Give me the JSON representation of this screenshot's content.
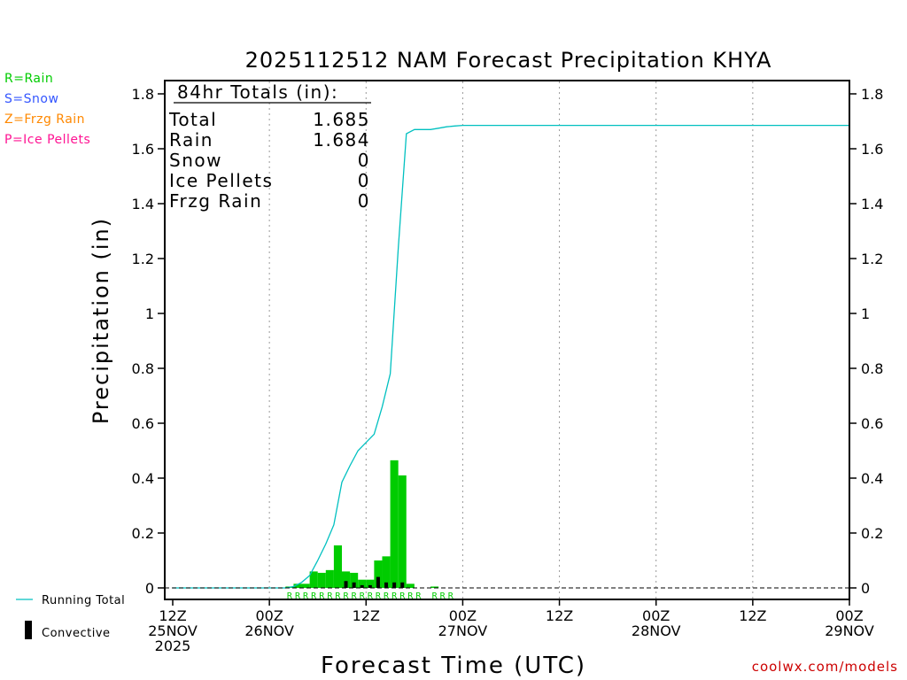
{
  "chart_data": {
    "type": "bar",
    "title": "2025112512 NAM Forecast Precipitation KHYA",
    "xlabel": "Forecast Time (UTC)",
    "ylabel": "Precipitation (in)",
    "ylim": [
      0,
      1.85
    ],
    "xlim_hours": [
      0,
      84
    ],
    "y_ticks": [
      0,
      0.2,
      0.4,
      0.6,
      0.8,
      1,
      1.2,
      1.4,
      1.6,
      1.8
    ],
    "y_tick_labels": [
      "0",
      "0.2",
      "0.4",
      "0.6",
      "0.8",
      "1",
      "1.2",
      "1.4",
      "1.6",
      "1.8"
    ],
    "x_ticks": [
      {
        "hour": 0,
        "line1": "12Z",
        "line2": "25NOV",
        "line3": "2025"
      },
      {
        "hour": 12,
        "line1": "00Z",
        "line2": "26NOV",
        "line3": ""
      },
      {
        "hour": 24,
        "line1": "12Z",
        "line2": "",
        "line3": ""
      },
      {
        "hour": 36,
        "line1": "00Z",
        "line2": "27NOV",
        "line3": ""
      },
      {
        "hour": 48,
        "line1": "12Z",
        "line2": "",
        "line3": ""
      },
      {
        "hour": 60,
        "line1": "00Z",
        "line2": "28NOV",
        "line3": ""
      },
      {
        "hour": 72,
        "line1": "12Z",
        "line2": "",
        "line3": ""
      },
      {
        "hour": 84,
        "line1": "00Z",
        "line2": "29NOV",
        "line3": ""
      }
    ],
    "grid": "vertical dotted at 00Z and 12Z",
    "bar_hours": [
      15,
      16,
      17,
      18,
      19,
      20,
      21,
      22,
      23,
      24,
      25,
      26,
      27,
      28,
      29,
      30,
      31,
      32,
      33,
      34,
      35
    ],
    "series": [
      {
        "name": "Rain",
        "color": "#00cc00",
        "values": [
          0.005,
          0.015,
          0.015,
          0.06,
          0.055,
          0.065,
          0.155,
          0.06,
          0.055,
          0.03,
          0.03,
          0.1,
          0.115,
          0.465,
          0.41,
          0.015,
          0.0,
          0.0,
          0.005,
          0.0,
          0.0
        ]
      },
      {
        "name": "Convective",
        "color": "#000000",
        "values": [
          0.0,
          0.0,
          0.0,
          0.0,
          0.0,
          0.0,
          0.0,
          0.025,
          0.02,
          0.01,
          0.01,
          0.04,
          0.02,
          0.02,
          0.02,
          0.0,
          0.0,
          0.0,
          0.0,
          0.0,
          0.0
        ]
      },
      {
        "name": "Running Total",
        "color": "#00c0c0",
        "x_hours": [
          0,
          14,
          15,
          16,
          17,
          18,
          19,
          20,
          21,
          22,
          23,
          24,
          25,
          26,
          27,
          28,
          29,
          30,
          31,
          32,
          33,
          34,
          35,
          36,
          84
        ],
        "values": [
          0,
          0,
          0.005,
          0.02,
          0.045,
          0.1,
          0.16,
          0.23,
          0.385,
          0.445,
          0.5,
          0.53,
          0.56,
          0.66,
          0.78,
          1.24,
          1.655,
          1.67,
          1.67,
          1.67,
          1.675,
          1.68,
          1.683,
          1.685,
          1.685
        ]
      }
    ],
    "ptype_marks": {
      "label": "R",
      "color": "#00cc00",
      "hours": [
        15,
        16,
        17,
        18,
        19,
        20,
        21,
        22,
        23,
        24,
        25,
        26,
        27,
        28,
        29,
        30,
        31,
        33,
        34,
        35
      ]
    },
    "totals_box": {
      "heading": "84hr Totals (in):",
      "rows": [
        {
          "label": "Total",
          "value": "1.685"
        },
        {
          "label": "Rain",
          "value": "1.684"
        },
        {
          "label": "Snow",
          "value": "0"
        },
        {
          "label": "Ice Pellets",
          "value": "0"
        },
        {
          "label": "Frzg Rain",
          "value": "0"
        }
      ]
    }
  },
  "ptype_legend": [
    {
      "text": "R=Rain",
      "color": "#00cc00"
    },
    {
      "text": "S=Snow",
      "color": "#3355ff"
    },
    {
      "text": "Z=Frzg Rain",
      "color": "#ff8800"
    },
    {
      "text": "P=Ice Pellets",
      "color": "#ff1493"
    }
  ],
  "series_legend": {
    "running_total": "Running Total",
    "convective": "Convective"
  },
  "footer": {
    "text": "coolwx.com/models",
    "color": "#cc0000"
  }
}
